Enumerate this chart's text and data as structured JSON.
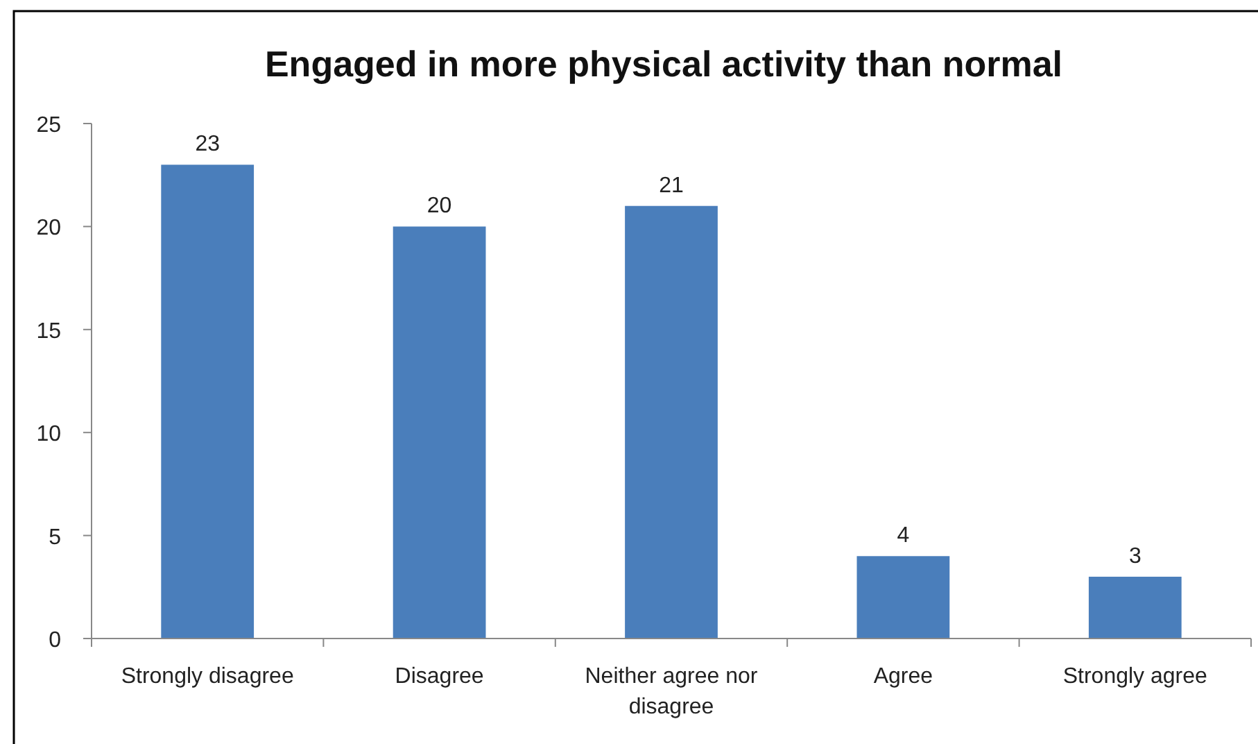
{
  "chart_data": {
    "type": "bar",
    "title": "Engaged in more physical activity than normal",
    "categories": [
      "Strongly disagree",
      "Disagree",
      "Neither agree nor disagree",
      "Agree",
      "Strongly agree"
    ],
    "values": [
      23,
      20,
      21,
      4,
      3
    ],
    "color": "#4a7ebb",
    "ylim": [
      0,
      25
    ],
    "yticks": [
      0,
      5,
      10,
      15,
      20,
      25
    ],
    "grid": false,
    "data_labels": true
  }
}
